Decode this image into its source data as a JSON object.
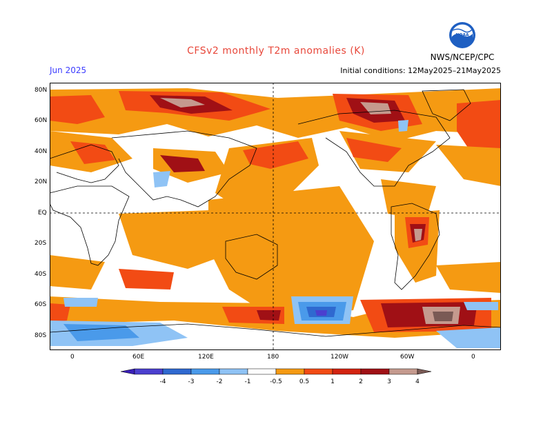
{
  "header": {
    "title": "CFSv2 monthly T2m anomalies (K)",
    "month": "Jun 2025",
    "initial_conditions": "Initial conditions: 12May2025–21May2025",
    "agency": "NWS/NCEP/CPC",
    "logo_text": "NOAA"
  },
  "map": {
    "lat_labels": [
      "80N",
      "60N",
      "40N",
      "20N",
      "EQ",
      "20S",
      "40S",
      "60S",
      "80S"
    ],
    "lon_labels": [
      "0",
      "60E",
      "120E",
      "180",
      "120W",
      "60W",
      "0"
    ]
  },
  "legend": {
    "levels": [
      "-4",
      "-3",
      "-2",
      "-1",
      "-0.5",
      "0.5",
      "1",
      "2",
      "3",
      "4"
    ],
    "colors": [
      "#3a1fb8",
      "#4b3fcf",
      "#2f69d0",
      "#4a9aea",
      "#8fc3f5",
      "#ffffff",
      "#f59a12",
      "#f24b14",
      "#d32310",
      "#a01015",
      "#c59a8e",
      "#7a5a55"
    ]
  }
}
